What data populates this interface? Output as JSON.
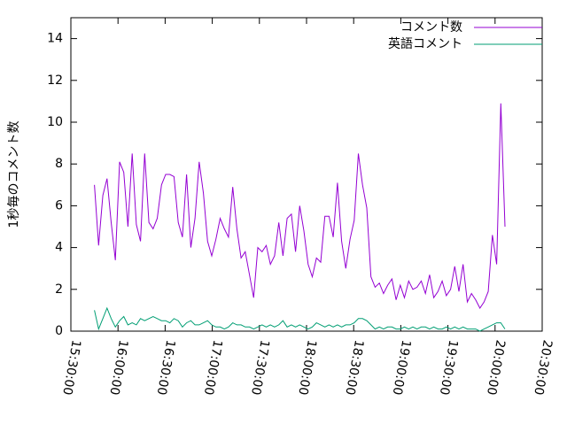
{
  "chart_data": {
    "type": "line",
    "ylabel": "1秒毎のコメント数",
    "x": [
      "15:45:00",
      "15:47:40",
      "15:50:20",
      "15:53:00",
      "15:55:40",
      "15:58:20",
      "16:01:00",
      "16:03:40",
      "16:06:20",
      "16:09:00",
      "16:11:40",
      "16:14:20",
      "16:17:00",
      "16:19:40",
      "16:22:20",
      "16:25:00",
      "16:27:40",
      "16:30:20",
      "16:33:00",
      "16:35:40",
      "16:38:20",
      "16:41:00",
      "16:43:40",
      "16:46:20",
      "16:49:00",
      "16:51:40",
      "16:54:20",
      "16:57:00",
      "16:59:40",
      "17:02:20",
      "17:05:00",
      "17:07:40",
      "17:10:20",
      "17:13:00",
      "17:15:40",
      "17:18:20",
      "17:21:00",
      "17:23:40",
      "17:26:20",
      "17:29:00",
      "17:31:40",
      "17:34:20",
      "17:37:00",
      "17:39:40",
      "17:42:20",
      "17:45:00",
      "17:47:40",
      "17:50:20",
      "17:53:00",
      "17:55:40",
      "17:58:20",
      "18:01:00",
      "18:03:40",
      "18:06:20",
      "18:09:00",
      "18:11:40",
      "18:14:20",
      "18:17:00",
      "18:19:40",
      "18:22:20",
      "18:25:00",
      "18:27:40",
      "18:30:20",
      "18:33:00",
      "18:35:40",
      "18:38:20",
      "18:41:00",
      "18:43:40",
      "18:46:20",
      "18:49:00",
      "18:51:40",
      "18:54:20",
      "18:57:00",
      "18:59:40",
      "19:02:20",
      "19:05:00",
      "19:07:40",
      "19:10:20",
      "19:13:00",
      "19:15:40",
      "19:18:20",
      "19:21:00",
      "19:23:40",
      "19:26:20",
      "19:29:00",
      "19:31:40",
      "19:34:20",
      "19:37:00",
      "19:39:40",
      "19:42:20",
      "19:45:00",
      "19:47:40",
      "19:50:20",
      "19:53:00",
      "19:55:40",
      "19:58:20",
      "20:01:00",
      "20:03:40",
      "20:06:20"
    ],
    "series": [
      {
        "name": "コメント数",
        "color": "#9400d3",
        "values": [
          7.0,
          4.1,
          6.5,
          7.3,
          5.2,
          3.4,
          8.1,
          7.6,
          5.0,
          8.5,
          5.1,
          4.3,
          8.5,
          5.2,
          4.9,
          5.4,
          7.0,
          7.5,
          7.5,
          7.4,
          5.2,
          4.5,
          7.5,
          4.0,
          5.4,
          8.1,
          6.6,
          4.3,
          3.6,
          4.4,
          5.4,
          4.9,
          4.5,
          6.9,
          4.9,
          3.5,
          3.8,
          2.7,
          1.6,
          4.0,
          3.8,
          4.1,
          3.2,
          3.6,
          5.2,
          3.6,
          5.4,
          5.6,
          3.8,
          6.0,
          4.8,
          3.2,
          2.6,
          3.5,
          3.3,
          5.5,
          5.5,
          4.5,
          7.1,
          4.3,
          3.0,
          4.4,
          5.3,
          8.5,
          7.0,
          5.9,
          2.6,
          2.1,
          2.3,
          1.8,
          2.2,
          2.5,
          1.5,
          2.2,
          1.6,
          2.4,
          2.0,
          2.1,
          2.4,
          1.8,
          2.7,
          1.6,
          1.9,
          2.4,
          1.7,
          2.0,
          3.1,
          1.9,
          3.2,
          1.4,
          1.8,
          1.5,
          1.1,
          1.4,
          1.9,
          4.6,
          3.2,
          10.9,
          5.0
        ]
      },
      {
        "name": "英語コメント",
        "color": "#009e73",
        "values": [
          1.0,
          0.1,
          0.6,
          1.1,
          0.6,
          0.2,
          0.5,
          0.7,
          0.3,
          0.4,
          0.3,
          0.6,
          0.5,
          0.6,
          0.7,
          0.6,
          0.5,
          0.5,
          0.4,
          0.6,
          0.5,
          0.2,
          0.4,
          0.5,
          0.3,
          0.3,
          0.4,
          0.5,
          0.3,
          0.2,
          0.2,
          0.1,
          0.2,
          0.4,
          0.3,
          0.3,
          0.2,
          0.2,
          0.1,
          0.2,
          0.3,
          0.2,
          0.3,
          0.2,
          0.3,
          0.5,
          0.2,
          0.3,
          0.2,
          0.3,
          0.2,
          0.1,
          0.2,
          0.4,
          0.3,
          0.2,
          0.3,
          0.2,
          0.3,
          0.2,
          0.3,
          0.3,
          0.4,
          0.6,
          0.6,
          0.5,
          0.3,
          0.1,
          0.2,
          0.1,
          0.2,
          0.2,
          0.1,
          0.1,
          0.2,
          0.1,
          0.2,
          0.1,
          0.2,
          0.2,
          0.1,
          0.2,
          0.1,
          0.1,
          0.2,
          0.1,
          0.2,
          0.1,
          0.2,
          0.1,
          0.1,
          0.1,
          0.0,
          0.1,
          0.2,
          0.3,
          0.4,
          0.4,
          0.1
        ]
      }
    ],
    "xlim": [
      "15:30:00",
      "20:30:00"
    ],
    "xticks": [
      "15:30:00",
      "16:00:00",
      "16:30:00",
      "17:00:00",
      "17:30:00",
      "18:00:00",
      "18:30:00",
      "19:00:00",
      "19:30:00",
      "20:00:00",
      "20:30:00"
    ],
    "ylim": [
      0,
      15
    ],
    "yticks": [
      0,
      2,
      4,
      6,
      8,
      10,
      12,
      14
    ],
    "legend": "top-right"
  }
}
